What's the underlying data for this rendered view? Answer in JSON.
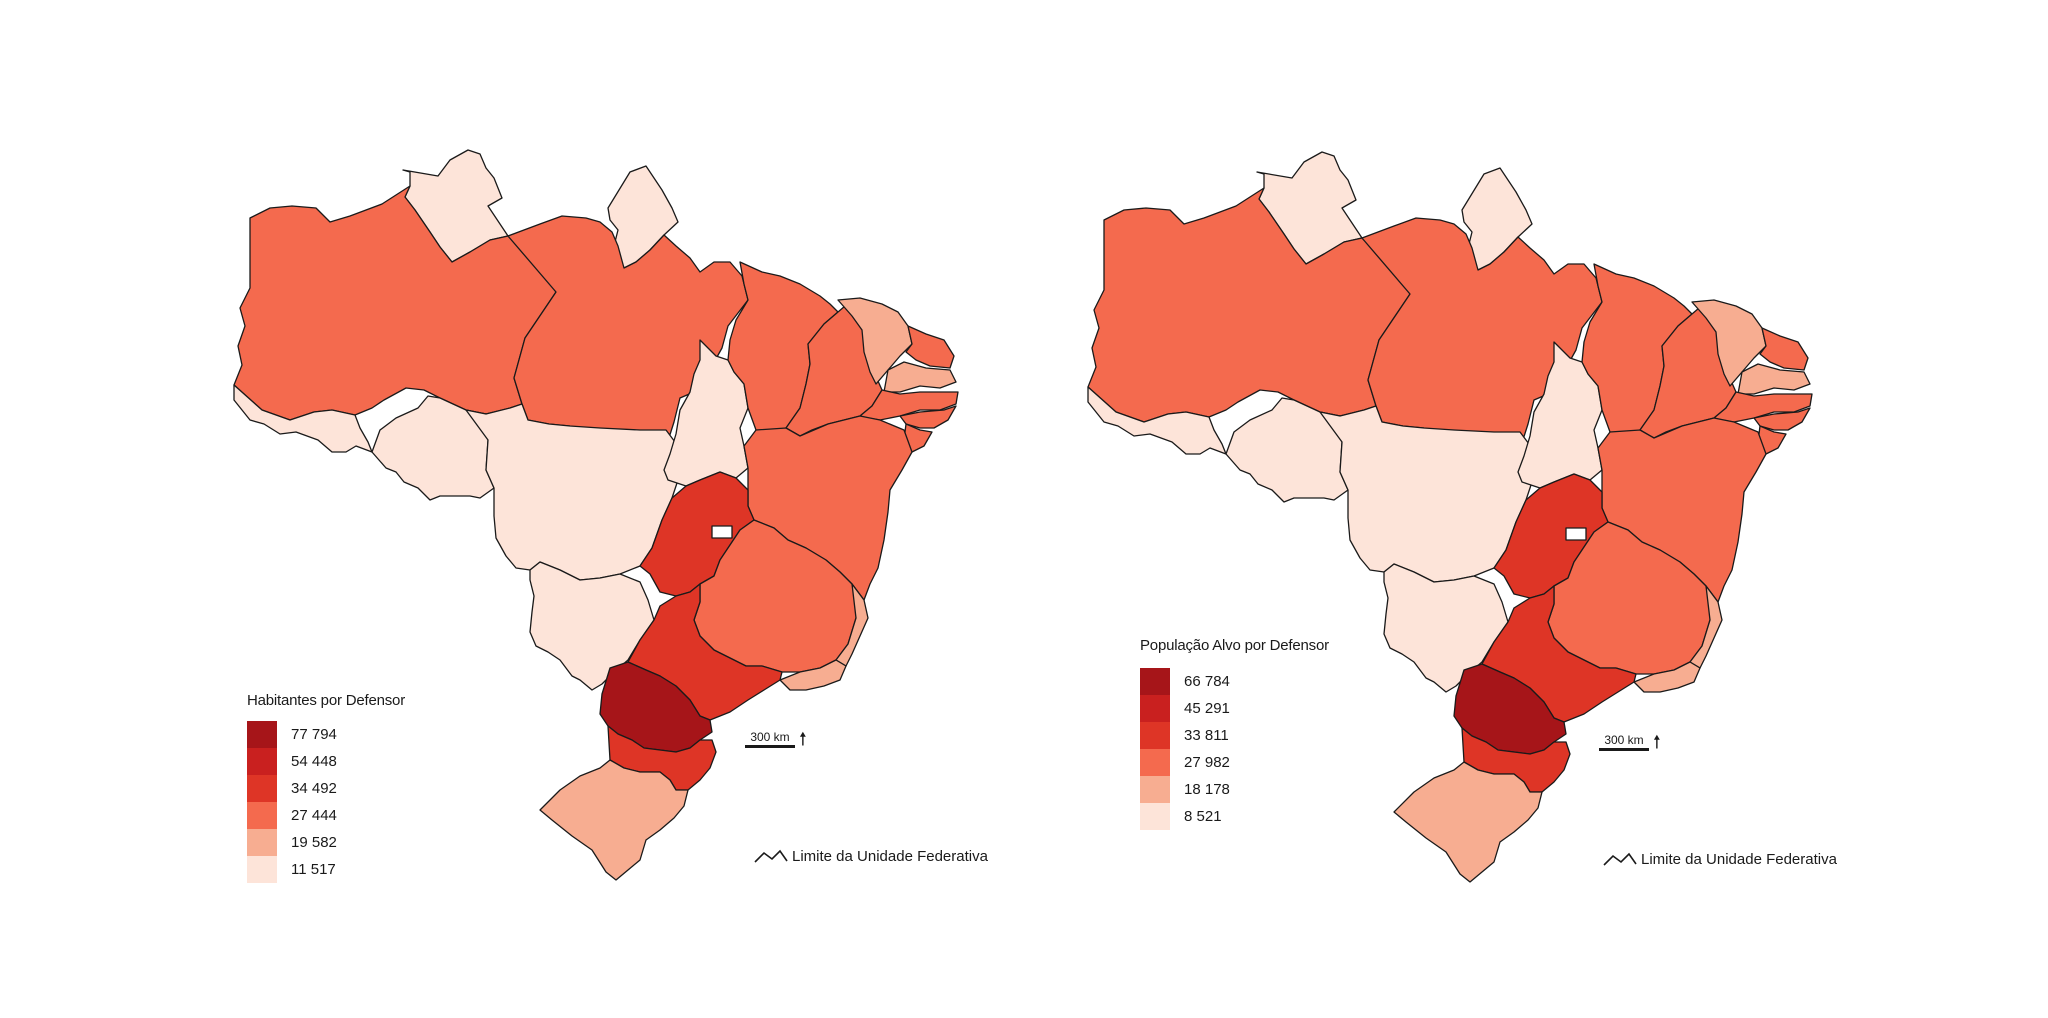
{
  "colors": {
    "stroke": "#1a1a1a",
    "classes": [
      "#a61519",
      "#c9201f",
      "#de3526",
      "#f46a4e",
      "#f7ad91",
      "#fde4d9"
    ],
    "federal_district": "#ffffff"
  },
  "maps": [
    {
      "legend_title": "Habitantes por Defensor",
      "legend_values": [
        "77 794",
        "54 448",
        "34 492",
        "27 444",
        "19 582",
        "11 517"
      ],
      "scale_label": "300 km",
      "border_label": "Limite da Unidade Federativa",
      "state_classes": {
        "RR": 5,
        "AP": 5,
        "AM": 3,
        "PA": 3,
        "AC": 5,
        "RO": 5,
        "MT": 5,
        "MS": 5,
        "TO": 5,
        "MA": 3,
        "PI": 3,
        "CE": 4,
        "RN": 3,
        "PB": 4,
        "PE": 3,
        "AL": 3,
        "SE": 3,
        "BA": 3,
        "GO": 2,
        "MG": 3,
        "ES": 4,
        "RJ": 4,
        "SP": 2,
        "PR": 0,
        "SC": 2,
        "RS": 4,
        "DF": "white"
      }
    },
    {
      "legend_title": "População Alvo por Defensor",
      "legend_values": [
        "66 784",
        "45 291",
        "33 811",
        "27 982",
        "18 178",
        "8 521"
      ],
      "scale_label": "300 km",
      "border_label": "Limite da Unidade Federativa",
      "state_classes": {
        "RR": 5,
        "AP": 5,
        "AM": 3,
        "PA": 3,
        "AC": 5,
        "RO": 5,
        "MT": 5,
        "MS": 5,
        "TO": 5,
        "MA": 3,
        "PI": 3,
        "CE": 4,
        "RN": 3,
        "PB": 4,
        "PE": 3,
        "AL": 3,
        "SE": 3,
        "BA": 3,
        "GO": 2,
        "MG": 3,
        "ES": 4,
        "RJ": 4,
        "SP": 2,
        "PR": 0,
        "SC": 2,
        "RS": 4,
        "DF": "white"
      }
    }
  ]
}
